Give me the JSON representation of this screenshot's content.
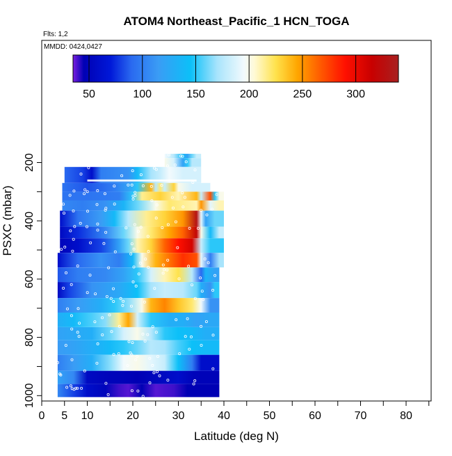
{
  "chart_data": {
    "type": "heatmap",
    "title": "ATOM4 Northeast_Pacific_1 HCN_TOGA",
    "annotations": {
      "flights": "Flts: 1,2",
      "dates": "MMDD: 0424,0427"
    },
    "xlabel": "Latitude (deg N)",
    "ylabel": "PSXC (mbar)",
    "xlim": [
      0,
      85
    ],
    "ylim": [
      1010,
      100
    ],
    "x_ticks": [
      0,
      5,
      10,
      20,
      30,
      40,
      50,
      60,
      70,
      80
    ],
    "x_minor_ticks": [
      15,
      25,
      35,
      45,
      55,
      65,
      75,
      85
    ],
    "y_ticks": [
      200,
      400,
      600,
      800,
      1000
    ],
    "y_minor_ticks": [
      300,
      500,
      700,
      900
    ],
    "grid": false,
    "colorbar": {
      "min": 35,
      "max": 340,
      "ticks": [
        50,
        100,
        150,
        200,
        250,
        300
      ],
      "stops": [
        [
          35,
          "#7b1fe0"
        ],
        [
          45,
          "#0000b4"
        ],
        [
          70,
          "#0018d8"
        ],
        [
          90,
          "#2a6af0"
        ],
        [
          115,
          "#3a9cf5"
        ],
        [
          145,
          "#0cc0f8"
        ],
        [
          170,
          "#a8e4fc"
        ],
        [
          195,
          "#f2fafd"
        ],
        [
          205,
          "#fffad6"
        ],
        [
          225,
          "#ffe24c"
        ],
        [
          245,
          "#ffa600"
        ],
        [
          270,
          "#ff5000"
        ],
        [
          290,
          "#ff1000"
        ],
        [
          315,
          "#c80000"
        ],
        [
          340,
          "#a82020"
        ]
      ]
    },
    "bands": [
      {
        "p_top": 170,
        "p_bot": 185,
        "lat0": 27,
        "lat1": 35,
        "cells": [
          [
            27,
            195
          ],
          [
            29,
            175
          ],
          [
            31,
            140
          ],
          [
            32,
            120
          ],
          [
            33,
            160
          ],
          [
            34,
            180
          ]
        ]
      },
      {
        "p_top": 185,
        "p_bot": 215,
        "lat0": 27,
        "lat1": 35,
        "cells": [
          [
            27,
            200
          ],
          [
            29,
            185
          ],
          [
            31,
            120
          ],
          [
            32,
            150
          ],
          [
            33,
            175
          ]
        ]
      },
      {
        "p_top": 215,
        "p_bot": 270,
        "lat0": 5,
        "lat1": 35,
        "cells": [
          [
            5,
            90
          ],
          [
            9,
            80
          ],
          [
            11,
            60
          ],
          [
            13,
            100
          ],
          [
            19,
            110
          ],
          [
            21,
            140
          ],
          [
            24,
            170
          ],
          [
            26,
            180
          ],
          [
            28,
            195
          ],
          [
            31,
            185
          ]
        ]
      },
      {
        "p_top": 270,
        "p_bot": 300,
        "lat0": 4.5,
        "lat1": 37,
        "cells": [
          [
            4.5,
            95
          ],
          [
            10,
            85
          ],
          [
            16,
            100
          ],
          [
            19,
            120
          ],
          [
            21,
            150
          ],
          [
            24,
            240
          ],
          [
            25,
            175
          ],
          [
            26,
            220
          ],
          [
            27,
            180
          ],
          [
            29,
            230
          ],
          [
            30,
            200
          ],
          [
            33,
            185
          ]
        ]
      },
      {
        "p_top": 300,
        "p_bot": 330,
        "lat0": 4.5,
        "lat1": 40,
        "cells": [
          [
            4.5,
            95
          ],
          [
            10,
            95
          ],
          [
            17,
            100
          ],
          [
            20,
            150
          ],
          [
            22,
            215
          ],
          [
            26,
            230
          ],
          [
            30,
            210
          ],
          [
            34,
            240
          ],
          [
            35,
            180
          ],
          [
            37,
            270
          ],
          [
            38,
            150
          ],
          [
            39,
            200
          ]
        ]
      },
      {
        "p_top": 330,
        "p_bot": 365,
        "lat0": 4.5,
        "lat1": 40,
        "cells": [
          [
            4.5,
            105
          ],
          [
            9,
            100
          ],
          [
            14,
            110
          ],
          [
            18,
            135
          ],
          [
            21,
            160
          ],
          [
            25,
            200
          ],
          [
            28,
            220
          ],
          [
            31,
            215
          ],
          [
            34,
            210
          ],
          [
            35,
            250
          ],
          [
            37,
            190
          ],
          [
            39,
            210
          ]
        ]
      },
      {
        "p_top": 365,
        "p_bot": 420,
        "lat0": 4,
        "lat1": 40,
        "cells": [
          [
            4,
            60
          ],
          [
            8,
            95
          ],
          [
            13,
            115
          ],
          [
            16,
            140
          ],
          [
            19,
            175
          ],
          [
            23,
            215
          ],
          [
            27,
            230
          ],
          [
            31,
            250
          ],
          [
            34,
            330
          ],
          [
            35,
            190
          ],
          [
            36,
            120
          ],
          [
            38,
            160
          ]
        ]
      },
      {
        "p_top": 420,
        "p_bot": 460,
        "lat0": 4,
        "lat1": 40,
        "cells": [
          [
            4,
            55
          ],
          [
            8,
            75
          ],
          [
            14,
            105
          ],
          [
            18,
            160
          ],
          [
            21,
            200
          ],
          [
            24,
            220
          ],
          [
            28,
            245
          ],
          [
            31,
            265
          ],
          [
            34,
            320
          ],
          [
            35,
            200
          ],
          [
            37,
            140
          ],
          [
            39,
            180
          ]
        ]
      },
      {
        "p_top": 460,
        "p_bot": 510,
        "lat0": 4,
        "lat1": 40,
        "cells": [
          [
            4,
            50
          ],
          [
            8,
            60
          ],
          [
            13,
            80
          ],
          [
            17,
            120
          ],
          [
            19,
            160
          ],
          [
            21,
            210
          ],
          [
            24,
            230
          ],
          [
            27,
            265
          ],
          [
            30,
            290
          ],
          [
            33,
            310
          ],
          [
            35,
            180
          ],
          [
            37,
            150
          ]
        ]
      },
      {
        "p_top": 510,
        "p_bot": 560,
        "lat0": 3.5,
        "lat1": 40,
        "cells": [
          [
            3.5,
            60
          ],
          [
            8,
            90
          ],
          [
            13,
            110
          ],
          [
            17,
            100
          ],
          [
            20,
            140
          ],
          [
            22,
            200
          ],
          [
            25,
            240
          ],
          [
            28,
            260
          ],
          [
            31,
            280
          ],
          [
            34,
            270
          ],
          [
            35,
            190
          ],
          [
            37,
            100
          ],
          [
            39,
            170
          ]
        ]
      },
      {
        "p_top": 560,
        "p_bot": 610,
        "lat0": 3.5,
        "lat1": 39,
        "cells": [
          [
            3.5,
            85
          ],
          [
            8,
            100
          ],
          [
            14,
            105
          ],
          [
            18,
            120
          ],
          [
            21,
            150
          ],
          [
            24,
            185
          ],
          [
            27,
            210
          ],
          [
            30,
            225
          ],
          [
            33,
            175
          ],
          [
            35,
            90
          ],
          [
            36,
            135
          ],
          [
            38,
            120
          ]
        ]
      },
      {
        "p_top": 610,
        "p_bot": 665,
        "lat0": 3.5,
        "lat1": 39,
        "cells": [
          [
            3.5,
            55
          ],
          [
            6,
            80
          ],
          [
            11,
            110
          ],
          [
            17,
            125
          ],
          [
            21,
            145
          ],
          [
            24,
            170
          ],
          [
            27,
            180
          ],
          [
            31,
            175
          ],
          [
            34,
            160
          ],
          [
            35,
            130
          ],
          [
            37,
            110
          ],
          [
            38,
            150
          ]
        ]
      },
      {
        "p_top": 665,
        "p_bot": 715,
        "lat0": 3.5,
        "lat1": 39,
        "cells": [
          [
            3.5,
            100
          ],
          [
            8,
            115
          ],
          [
            13,
            130
          ],
          [
            16,
            150
          ],
          [
            19,
            165
          ],
          [
            22,
            200
          ],
          [
            24,
            240
          ],
          [
            27,
            255
          ],
          [
            30,
            235
          ],
          [
            33,
            220
          ],
          [
            35,
            195
          ],
          [
            37,
            110
          ]
        ]
      },
      {
        "p_top": 715,
        "p_bot": 765,
        "lat0": 3.5,
        "lat1": 39,
        "cells": [
          [
            3.5,
            130
          ],
          [
            7,
            140
          ],
          [
            11,
            155
          ],
          [
            14,
            165
          ],
          [
            17,
            215
          ],
          [
            19,
            245
          ],
          [
            21,
            185
          ],
          [
            24,
            150
          ],
          [
            28,
            130
          ],
          [
            31,
            130
          ],
          [
            34,
            120
          ],
          [
            37,
            125
          ]
        ]
      },
      {
        "p_top": 765,
        "p_bot": 810,
        "lat0": 3.5,
        "lat1": 39,
        "cells": [
          [
            3.5,
            120
          ],
          [
            7,
            125
          ],
          [
            11,
            130
          ],
          [
            15,
            160
          ],
          [
            18,
            185
          ],
          [
            21,
            200
          ],
          [
            24,
            175
          ],
          [
            27,
            150
          ],
          [
            30,
            145
          ],
          [
            33,
            140
          ],
          [
            36,
            130
          ]
        ]
      },
      {
        "p_top": 810,
        "p_bot": 860,
        "lat0": 3.5,
        "lat1": 39,
        "cells": [
          [
            3.5,
            115
          ],
          [
            7,
            120
          ],
          [
            11,
            130
          ],
          [
            15,
            140
          ],
          [
            18,
            150
          ],
          [
            21,
            160
          ],
          [
            24,
            175
          ],
          [
            27,
            170
          ],
          [
            30,
            155
          ],
          [
            33,
            145
          ],
          [
            36,
            140
          ]
        ]
      },
      {
        "p_top": 860,
        "p_bot": 915,
        "lat0": 3.5,
        "lat1": 39,
        "cells": [
          [
            3.5,
            100
          ],
          [
            7,
            115
          ],
          [
            11,
            130
          ],
          [
            15,
            165
          ],
          [
            18,
            195
          ],
          [
            21,
            200
          ],
          [
            24,
            190
          ],
          [
            27,
            180
          ],
          [
            30,
            145
          ],
          [
            33,
            100
          ],
          [
            35,
            60
          ]
        ]
      },
      {
        "p_top": 915,
        "p_bot": 960,
        "lat0": 3.5,
        "lat1": 39,
        "cells": [
          [
            3.5,
            120
          ],
          [
            7,
            105
          ],
          [
            10,
            55
          ],
          [
            14,
            50
          ],
          [
            18,
            48
          ],
          [
            21,
            45
          ],
          [
            24,
            50
          ],
          [
            27,
            55
          ],
          [
            30,
            60
          ],
          [
            33,
            50
          ],
          [
            35,
            48
          ]
        ]
      },
      {
        "p_top": 960,
        "p_bot": 1005,
        "lat0": 3.5,
        "lat1": 39,
        "cells": [
          [
            3.5,
            105
          ],
          [
            7,
            80
          ],
          [
            10,
            60
          ],
          [
            14,
            50
          ],
          [
            17,
            40
          ],
          [
            19,
            38
          ],
          [
            22,
            45
          ],
          [
            25,
            38
          ],
          [
            29,
            40
          ],
          [
            32,
            45
          ],
          [
            35,
            45
          ]
        ]
      }
    ]
  }
}
